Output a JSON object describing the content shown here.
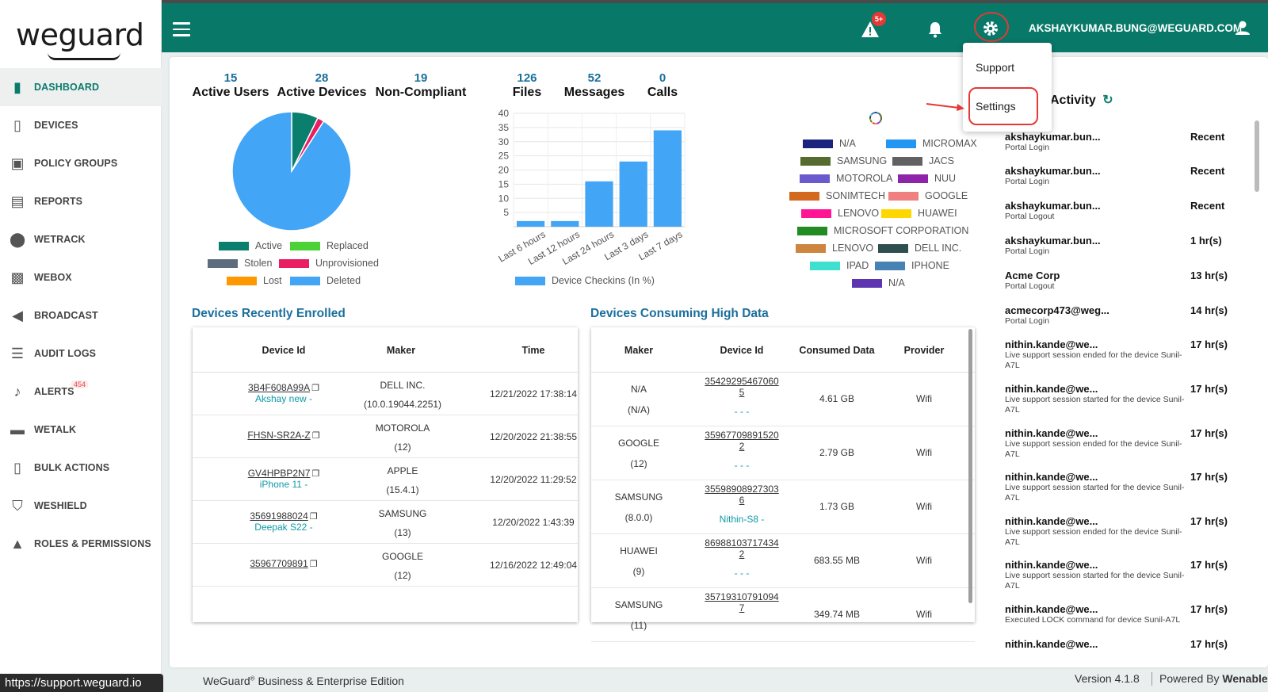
{
  "brand": {
    "logo_text": "weguard"
  },
  "sidebar": {
    "items": [
      {
        "label": "DASHBOARD",
        "icon": "bar-chart-icon",
        "glyph": "▮"
      },
      {
        "label": "DEVICES",
        "icon": "devices-icon",
        "glyph": "▯"
      },
      {
        "label": "POLICY GROUPS",
        "icon": "policy-groups-icon",
        "glyph": "▣"
      },
      {
        "label": "REPORTS",
        "icon": "reports-icon",
        "glyph": "▤"
      },
      {
        "label": "WETRACK",
        "icon": "location-pin-icon",
        "glyph": "⬤"
      },
      {
        "label": "WEBOX",
        "icon": "inbox-icon",
        "glyph": "▩"
      },
      {
        "label": "BROADCAST",
        "icon": "megaphone-icon",
        "glyph": "◀"
      },
      {
        "label": "AUDIT LOGS",
        "icon": "list-icon",
        "glyph": "☰"
      },
      {
        "label": "ALERTS",
        "icon": "alert-bell-icon",
        "glyph": "♪",
        "badge": "454"
      },
      {
        "label": "WETALK",
        "icon": "chat-icon",
        "glyph": "▬"
      },
      {
        "label": "BULK ACTIONS",
        "icon": "phone-icon",
        "glyph": "▯"
      },
      {
        "label": "WESHIELD",
        "icon": "shield-icon",
        "glyph": "⛉"
      },
      {
        "label": "ROLES & PERMISSIONS",
        "icon": "warning-icon",
        "glyph": "▲"
      }
    ]
  },
  "header": {
    "alert_badge": "5+",
    "user_email": "AKSHAYKUMAR.BUNG@WEGUARD.COM"
  },
  "dropdown": {
    "items": [
      "Support",
      "Settings"
    ]
  },
  "stats_left": [
    {
      "value": "15",
      "label": "Active Users"
    },
    {
      "value": "28",
      "label": "Active Devices"
    },
    {
      "value": "19",
      "label": "Non-Compliant"
    }
  ],
  "stats_right": [
    {
      "value": "126",
      "label": "Files"
    },
    {
      "value": "52",
      "label": "Messages"
    },
    {
      "value": "0",
      "label": "Calls"
    }
  ],
  "chart_data": [
    {
      "type": "pie",
      "labels": [
        "Active",
        "Replaced",
        "Stolen",
        "Unprovisioned",
        "Lost",
        "Deleted"
      ],
      "values": [
        2,
        0,
        0,
        0.5,
        0,
        25
      ],
      "colors": [
        "#0a7f6e",
        "#4cd137",
        "#5d6d7e",
        "#e91e63",
        "#ff9800",
        "#42a5f5"
      ]
    },
    {
      "type": "bar",
      "categories": [
        "Last 6 hours",
        "Last 12 hours",
        "Last 24 hours",
        "Last 3 days",
        "Last 7 days"
      ],
      "series": [
        {
          "name": "Device Checkins (In %)",
          "values": [
            2,
            2,
            16,
            23,
            34
          ]
        }
      ],
      "y_ticks": [
        5,
        10,
        15,
        20,
        25,
        30,
        35,
        40
      ],
      "ylim": [
        0,
        40
      ],
      "color": "#42a5f5"
    },
    {
      "type": "pie",
      "labels": [
        "N/A",
        "MICROMAX",
        "SAMSUNG",
        "JACS",
        "MOTOROLA",
        "NUU",
        "SONIMTECH",
        "GOOGLE",
        "LENOVO",
        "HUAWEI",
        "MICROSOFT CORPORATION",
        "LENOVO",
        "DELL INC.",
        "IPAD",
        "IPHONE",
        "N/A"
      ],
      "colors": [
        "#1a237e",
        "#2196f3",
        "#556b2f",
        "#616161",
        "#6a5acd",
        "#8e24aa",
        "#d2691e",
        "#f08080",
        "#ff1493",
        "#ffd700",
        "#228b22",
        "#cd853f",
        "#2f4f4f",
        "#40e0d0",
        "#4682b4",
        "#5e35b1"
      ]
    }
  ],
  "recent": {
    "title": "Devices Recently Enrolled",
    "columns": [
      "Device Id",
      "Maker",
      "Time"
    ],
    "rows": [
      {
        "id": "3B4F608A99A",
        "name": "Akshay new -",
        "maker": "DELL INC.",
        "ver": "(10.0.19044.2251)",
        "time": "12/21/2022 17:38:14"
      },
      {
        "id": "FHSN-SR2A-Z",
        "name": "",
        "maker": "MOTOROLA",
        "ver": "(12)",
        "time": "12/20/2022 21:38:55"
      },
      {
        "id": "GV4HPBP2N7",
        "name": "iPhone 11 -",
        "maker": "APPLE",
        "ver": "(15.4.1)",
        "time": "12/20/2022 11:29:52"
      },
      {
        "id": "35691988024",
        "name": "Deepak S22 -",
        "maker": "SAMSUNG",
        "ver": "(13)",
        "time": "12/20/2022 1:43:39"
      },
      {
        "id": "35967709891",
        "name": "",
        "maker": "GOOGLE",
        "ver": "(12)",
        "time": "12/16/2022 12:49:04"
      }
    ]
  },
  "highdata": {
    "title": "Devices Consuming High Data",
    "columns": [
      "Maker",
      "Device Id",
      "Consumed Data",
      "Provider"
    ],
    "rows": [
      {
        "maker": "N/A",
        "ver": "(N/A)",
        "id1": "35429295467060",
        "id2": "5",
        "name": "- - -",
        "data": "4.61 GB",
        "provider": "Wifi"
      },
      {
        "maker": "GOOGLE",
        "ver": "(12)",
        "id1": "35967709891520",
        "id2": "2",
        "name": "- - -",
        "data": "2.79 GB",
        "provider": "Wifi"
      },
      {
        "maker": "SAMSUNG",
        "ver": "(8.0.0)",
        "id1": "35598908927303",
        "id2": "6",
        "name": "Nithin-S8 -",
        "data": "1.73 GB",
        "provider": "Wifi"
      },
      {
        "maker": "HUAWEI",
        "ver": "(9)",
        "id1": "86988103717434",
        "id2": "2",
        "name": "- - -",
        "data": "683.55 MB",
        "provider": "Wifi"
      },
      {
        "maker": "SAMSUNG",
        "ver": "(11)",
        "id1": "35719310791094",
        "id2": "7",
        "name": "",
        "data": "349.74 MB",
        "provider": "Wifi"
      }
    ]
  },
  "activity": {
    "title": "Activity",
    "items": [
      {
        "who": "akshaykumar.bun...",
        "what": "Portal Login",
        "when": "Recent"
      },
      {
        "who": "akshaykumar.bun...",
        "what": "Portal Login",
        "when": "Recent"
      },
      {
        "who": "akshaykumar.bun...",
        "what": "Portal Logout",
        "when": "Recent"
      },
      {
        "who": "akshaykumar.bun...",
        "what": "Portal Login",
        "when": "1 hr(s)"
      },
      {
        "who": "Acme Corp",
        "what": "Portal Logout",
        "when": "13 hr(s)"
      },
      {
        "who": "acmecorp473@weg...",
        "what": "Portal Login",
        "when": "14 hr(s)"
      },
      {
        "who": "nithin.kande@we...",
        "what": "Live support session ended for the device Sunil-A7L",
        "when": "17 hr(s)"
      },
      {
        "who": "nithin.kande@we...",
        "what": "Live support session started for the device Sunil-A7L",
        "when": "17 hr(s)"
      },
      {
        "who": "nithin.kande@we...",
        "what": "Live support session ended for the device Sunil-A7L",
        "when": "17 hr(s)"
      },
      {
        "who": "nithin.kande@we...",
        "what": "Live support session started for the device Sunil-A7L",
        "when": "17 hr(s)"
      },
      {
        "who": "nithin.kande@we...",
        "what": "Live support session ended for the device Sunil-A7L",
        "when": "17 hr(s)"
      },
      {
        "who": "nithin.kande@we...",
        "what": "Live support session started for the device Sunil-A7L",
        "when": "17 hr(s)"
      },
      {
        "who": "nithin.kande@we...",
        "what": "Executed LOCK command for device Sunil-A7L",
        "when": "17 hr(s)"
      },
      {
        "who": "nithin.kande@we...",
        "what": "",
        "when": "17 hr(s)"
      }
    ]
  },
  "footer": {
    "edition_prefix": "WeGuard",
    "edition_reg": "®",
    "edition_suffix": " Business & Enterprise Edition",
    "version": "Version 4.1.8",
    "powered_prefix": "Powered By ",
    "powered_brand": "Wenable"
  },
  "status_url": "https://support.weguard.io"
}
